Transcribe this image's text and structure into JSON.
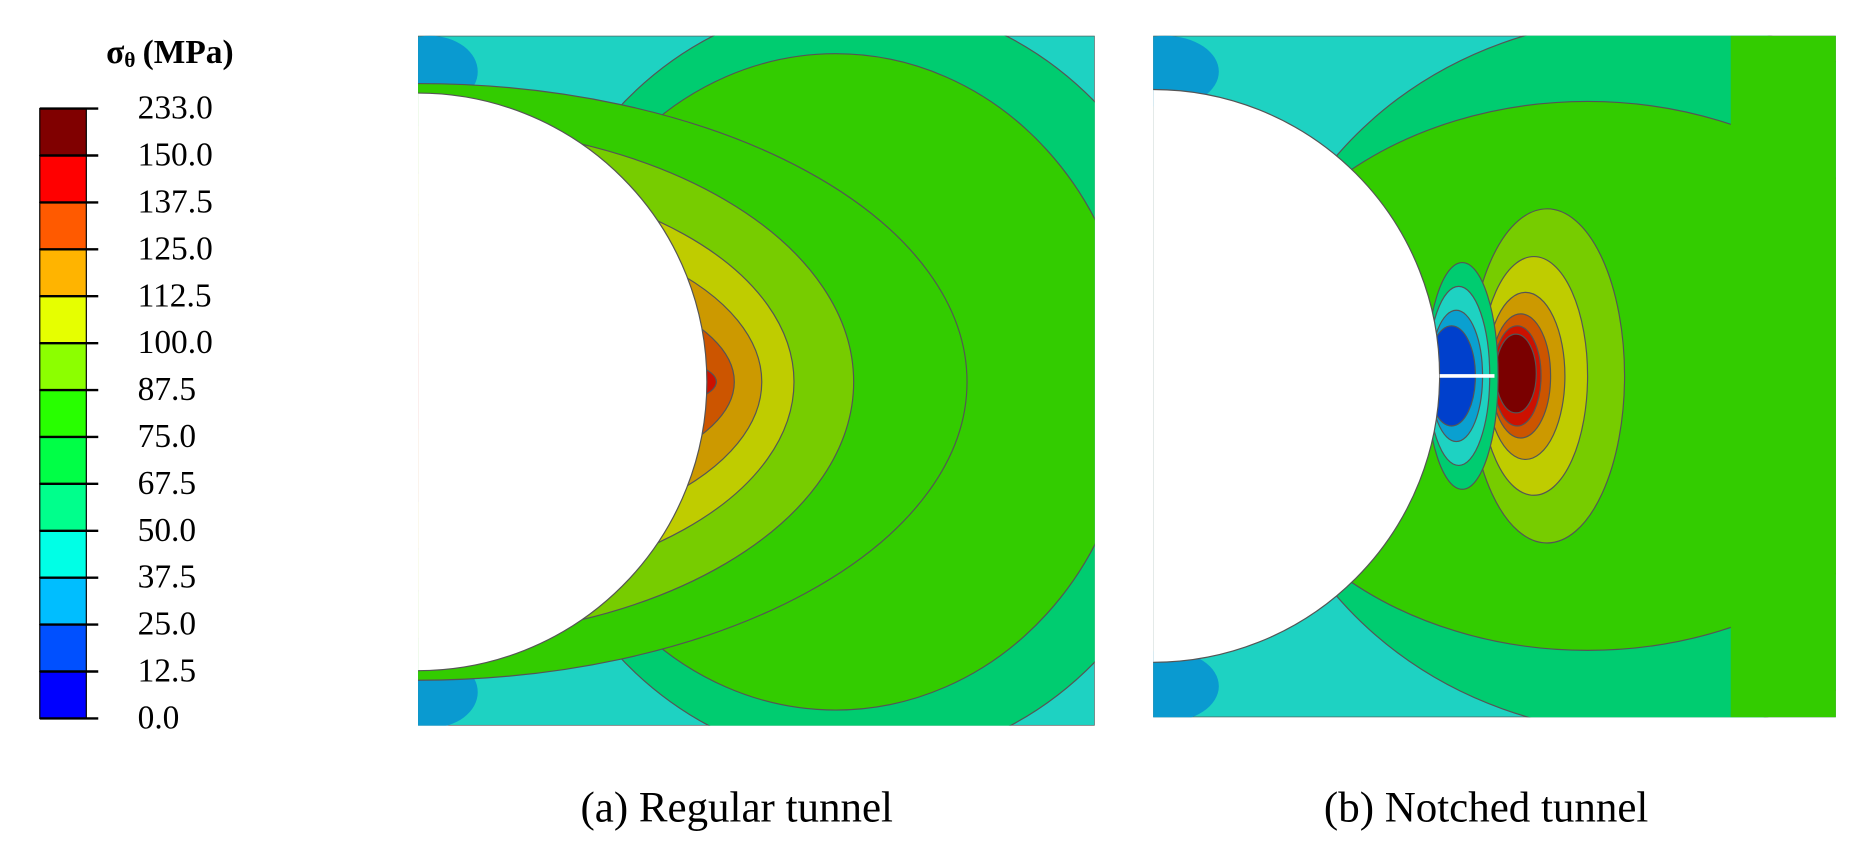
{
  "legend": {
    "title": {
      "symbol": "σ",
      "subscript": "θ",
      "unit": "(MPa)"
    },
    "labels": [
      "233.0",
      "150.0",
      "137.5",
      "125.0",
      "112.5",
      "100.0",
      "87.5",
      "75.0",
      "67.5",
      "50.0",
      "37.5",
      "25.0",
      "12.5",
      "0.0"
    ],
    "colors": [
      "#800000",
      "#ff0000",
      "#ff5a00",
      "#ffb400",
      "#e6ff00",
      "#8cff00",
      "#28ff00",
      "#00ff46",
      "#00ff8c",
      "#00ffe6",
      "#00beff",
      "#0050ff",
      "#0000ff"
    ]
  },
  "panels": [
    {
      "caption": "(a) Regular tunnel"
    },
    {
      "caption": "(b) Notched tunnel"
    }
  ]
}
